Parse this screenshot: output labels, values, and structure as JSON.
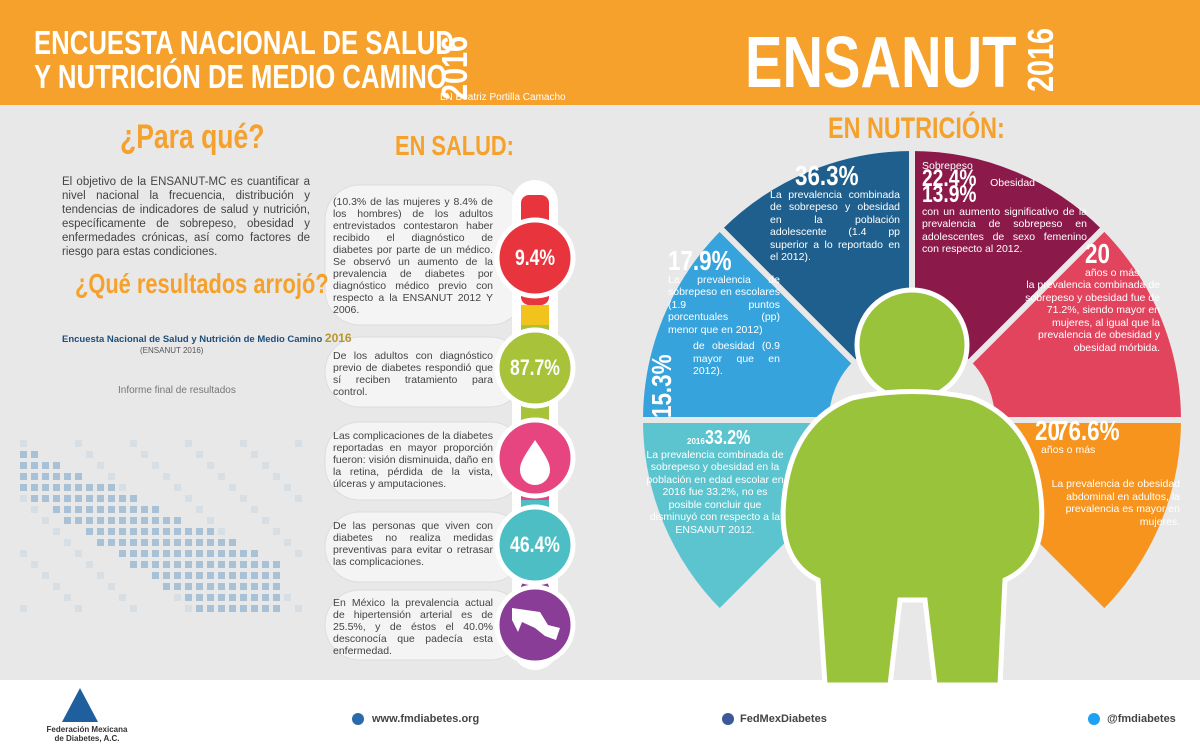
{
  "header": {
    "title_line1": "ENCUESTA NACIONAL DE SALUD",
    "title_line2": "Y NUTRICIÓN DE MEDIO CAMINO",
    "year": "2016",
    "author": "LN Beatriz Portilla Camacho",
    "brand": "ENSANUT",
    "brand_year": "2016"
  },
  "intro": {
    "heading": "¿Para qué?",
    "text": "El objetivo de la ENSANUT-MC es cuantificar a nivel nacional la frecuencia, distribución y tendencias de indicadores de salud y nutrición, específicamente de sobrepeso, obesidad y enfermedades crónicas, así como factores de riesgo para estas condiciones.",
    "results_heading": "¿Qué resultados arrojó?",
    "report_title": "Encuesta Nacional de Salud y Nutrición de Medio Camino",
    "report_year": "2016",
    "report_short": "(ENSANUT 2016)",
    "report_subtitle": "Informe final de resultados"
  },
  "salud": {
    "heading": "EN SALUD:",
    "items": [
      {
        "text": "(10.3% de las mujeres y 8.4% de los hombres) de los adultos entrevistados contestaron haber recibido el diagnóstico de diabetes por parte de un médico. Se observó un aumento de la prevalencia de diabetes por diagnóstico médico previo con respecto a la ENSANUT 2012 Y 2006.",
        "badge": "9.4%"
      },
      {
        "text": "De los adultos con diagnóstico previo de diabetes respondió que sí reciben tratamiento para control.",
        "badge": "87.7%"
      },
      {
        "text": "Las complicaciones de la diabetes reportadas en mayor proporción fueron: visión disminuida, daño en la retina, pérdida de la vista, úlceras y amputaciones."
      },
      {
        "text": "De las personas que viven con diabetes no realiza medidas preventivas para evitar o retrasar las complicaciones.",
        "badge": "46.4%"
      },
      {
        "text": "En México la prevalencia actual de hipertensión arterial es de 25.5%, y de éstos el 40.0% desconocía que padecía esta enfermedad."
      }
    ]
  },
  "nutricion": {
    "heading": "EN NUTRICIÓN:",
    "adolescentes": {
      "figure": "36.3%",
      "text": "La prevalencia combinada de sobrepeso y obesidad en la población adolescente (1.4 pp superior a lo reportado en el 2012)."
    },
    "adolescentes_detalle": {
      "label1": "Sobrepeso",
      "figure1": "22.4%",
      "label2": "Obesidad",
      "figure2": "13.9%",
      "text": "con un aumento significativo de la prevalencia de sobrepeso en adolescentes de sexo femenino con respecto al 2012."
    },
    "adultos": {
      "age": "20",
      "age_label": "años o más",
      "text": "la prevalencia combinada de sobrepeso y obesidad fue de 71.2%, siendo mayor en mujeres, al igual que la prevalencia de obesidad y obesidad mórbida."
    },
    "escolares": {
      "figure1": "17.9%",
      "text1": "La prevalencia de sobrepeso en escolares (1.9 puntos porcentuales (pp) menor que en 2012)",
      "figure2": "15.3%",
      "text2": "de obesidad (0.9 mayor que en 2012)."
    },
    "escolares_total": {
      "year": "2016",
      "figure": "33.2%",
      "text": "La prevalencia combinada de sobrepeso y obesidad en la población en edad escolar en 2016 fue 33.2%, no es posible concluir que disminuyó con respecto a la ENSANUT 2012."
    },
    "abdominal": {
      "age": "20",
      "figure": "76.6%",
      "age_label": "años o más",
      "text": "La prevalencia de obesidad abdominal en adultos, la prevalencia es mayor en mujeres."
    }
  },
  "footer": {
    "org": "Federación Mexicana de Diabetes, A.C.",
    "website": "www.fmdiabetes.org",
    "facebook": "FedMexDiabetes",
    "twitter": "@fmdiabetes"
  }
}
